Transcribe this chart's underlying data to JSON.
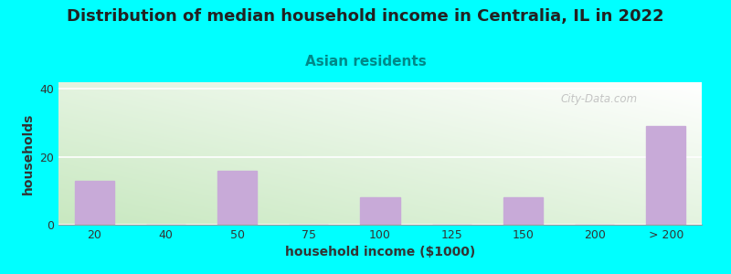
{
  "title": "Distribution of median household income in Centralia, IL in 2022",
  "subtitle": "Asian residents",
  "xlabel": "household income ($1000)",
  "ylabel": "households",
  "background_color": "#00FFFF",
  "plot_bg_color_bottom_left": "#c8e8c0",
  "plot_bg_color_top_right": "#ffffff",
  "bar_color": "#c8aad8",
  "categories": [
    "20",
    "40",
    "50",
    "75",
    "100",
    "125",
    "150",
    "200",
    "> 200"
  ],
  "values": [
    13,
    0,
    16,
    0,
    8,
    0,
    8,
    0,
    29
  ],
  "ylim": [
    0,
    42
  ],
  "yticks": [
    0,
    20,
    40
  ],
  "watermark": "City-Data.com",
  "title_fontsize": 13,
  "subtitle_fontsize": 11,
  "axis_label_fontsize": 10,
  "tick_fontsize": 9,
  "title_color": "#222222",
  "subtitle_color": "#008888"
}
